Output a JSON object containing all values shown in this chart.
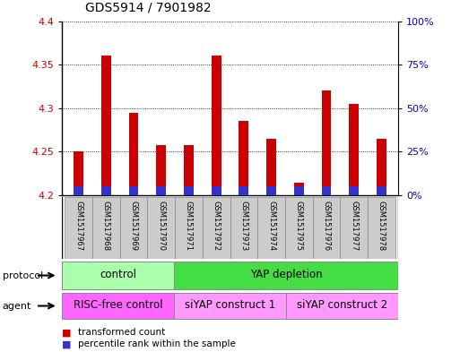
{
  "title": "GDS5914 / 7901982",
  "samples": [
    "GSM1517967",
    "GSM1517968",
    "GSM1517969",
    "GSM1517970",
    "GSM1517971",
    "GSM1517972",
    "GSM1517973",
    "GSM1517974",
    "GSM1517975",
    "GSM1517976",
    "GSM1517977",
    "GSM1517978"
  ],
  "transformed_count": [
    4.25,
    4.36,
    4.295,
    4.258,
    4.258,
    4.36,
    4.285,
    4.265,
    4.215,
    4.32,
    4.305,
    4.265
  ],
  "percentile_rank_pct": [
    5,
    5,
    5,
    5,
    5,
    5,
    5,
    5,
    5,
    5,
    5,
    5
  ],
  "ylim_left": [
    4.2,
    4.4
  ],
  "ylim_right": [
    0,
    100
  ],
  "yticks_left": [
    4.2,
    4.25,
    4.3,
    4.35,
    4.4
  ],
  "yticks_right": [
    0,
    25,
    50,
    75,
    100
  ],
  "ytick_labels_left": [
    "4.2",
    "4.25",
    "4.3",
    "4.35",
    "4.4"
  ],
  "ytick_labels_right": [
    "0%",
    "25%",
    "50%",
    "75%",
    "100%"
  ],
  "bar_bottom": 4.2,
  "bar_width": 0.35,
  "red_color": "#cc0000",
  "blue_color": "#3333cc",
  "protocol_groups": [
    {
      "label": "control",
      "start": 0,
      "end": 3,
      "color": "#aaffaa"
    },
    {
      "label": "YAP depletion",
      "start": 4,
      "end": 11,
      "color": "#44dd44"
    }
  ],
  "agent_groups": [
    {
      "label": "RISC-free control",
      "start": 0,
      "end": 3,
      "color": "#ff66ff"
    },
    {
      "label": "siYAP construct 1",
      "start": 4,
      "end": 7,
      "color": "#ff99ff"
    },
    {
      "label": "siYAP construct 2",
      "start": 8,
      "end": 11,
      "color": "#ff99ff"
    }
  ],
  "legend_items": [
    {
      "label": "transformed count",
      "color": "#cc0000"
    },
    {
      "label": "percentile rank within the sample",
      "color": "#3333cc"
    }
  ],
  "bg_color": "#ffffff",
  "title_fontsize": 10,
  "axis_label_color_left": "#cc0000",
  "axis_label_color_right": "#0000cc",
  "sample_bg_color": "#cccccc",
  "grid_color": "#000000",
  "border_color": "#888888"
}
